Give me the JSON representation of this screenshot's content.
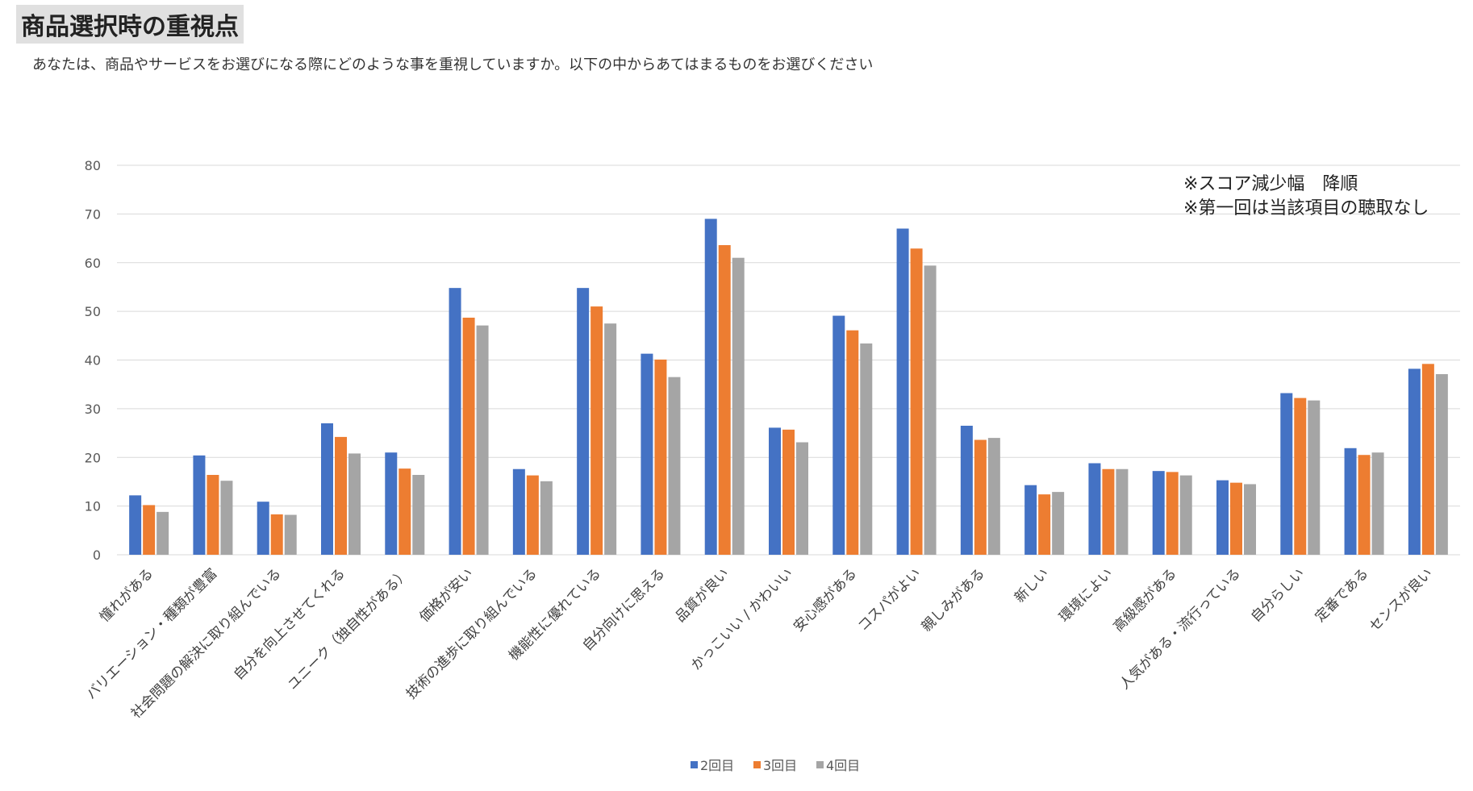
{
  "header": {
    "title": "商品選択時の重視点",
    "subtitle": "あなたは、商品やサービスをお選びになる際にどのような事を重視していますか。以下の中からあてはまるものをお選びください"
  },
  "notes": [
    "※スコア減少幅　降順",
    "※第一回は当該項目の聴取なし"
  ],
  "colors": {
    "2回目": "#4472c4",
    "3回目": "#ed7d31",
    "4回目": "#a5a5a5",
    "grid": "#d9d9d9"
  },
  "chart_data": {
    "type": "bar",
    "categories": [
      "憧れがある",
      "バリエーション・種類が豊富",
      "社会問題の解決に取り組んでいる",
      "自分を向上させてくれる",
      "ユニーク（独自性がある）",
      "価格が安い",
      "技術の進歩に取り組んでいる",
      "機能性に優れている",
      "自分向けに思える",
      "品質が良い",
      "かっこいい / かわいい",
      "安心感がある",
      "コスパがよい",
      "親しみがある",
      "新しい",
      "環境によい",
      "高級感がある",
      "人気がある・流行っている",
      "自分らしい",
      "定番である",
      "センスが良い"
    ],
    "series": [
      {
        "name": "2回目",
        "values": [
          12.2,
          20.4,
          10.9,
          27.0,
          21.0,
          54.8,
          17.6,
          54.8,
          41.3,
          69.0,
          26.1,
          49.1,
          67.0,
          26.5,
          14.3,
          18.8,
          17.2,
          15.3,
          33.2,
          21.9,
          38.2
        ]
      },
      {
        "name": "3回目",
        "values": [
          10.2,
          16.4,
          8.3,
          24.2,
          17.7,
          48.7,
          16.3,
          51.0,
          40.1,
          63.6,
          25.7,
          46.1,
          62.9,
          23.6,
          12.4,
          17.6,
          17.0,
          14.8,
          32.2,
          20.5,
          39.2
        ]
      },
      {
        "name": "4回目",
        "values": [
          8.8,
          15.2,
          8.2,
          20.8,
          16.4,
          47.1,
          15.1,
          47.5,
          36.5,
          61.0,
          23.1,
          43.4,
          59.4,
          24.0,
          12.9,
          17.6,
          16.3,
          14.5,
          31.7,
          21.0,
          37.1
        ]
      }
    ],
    "ylim": [
      0,
      80
    ],
    "yticks": [
      0,
      10,
      20,
      30,
      40,
      50,
      60,
      70,
      80
    ],
    "grid": true,
    "legend_position": "bottom-center"
  }
}
